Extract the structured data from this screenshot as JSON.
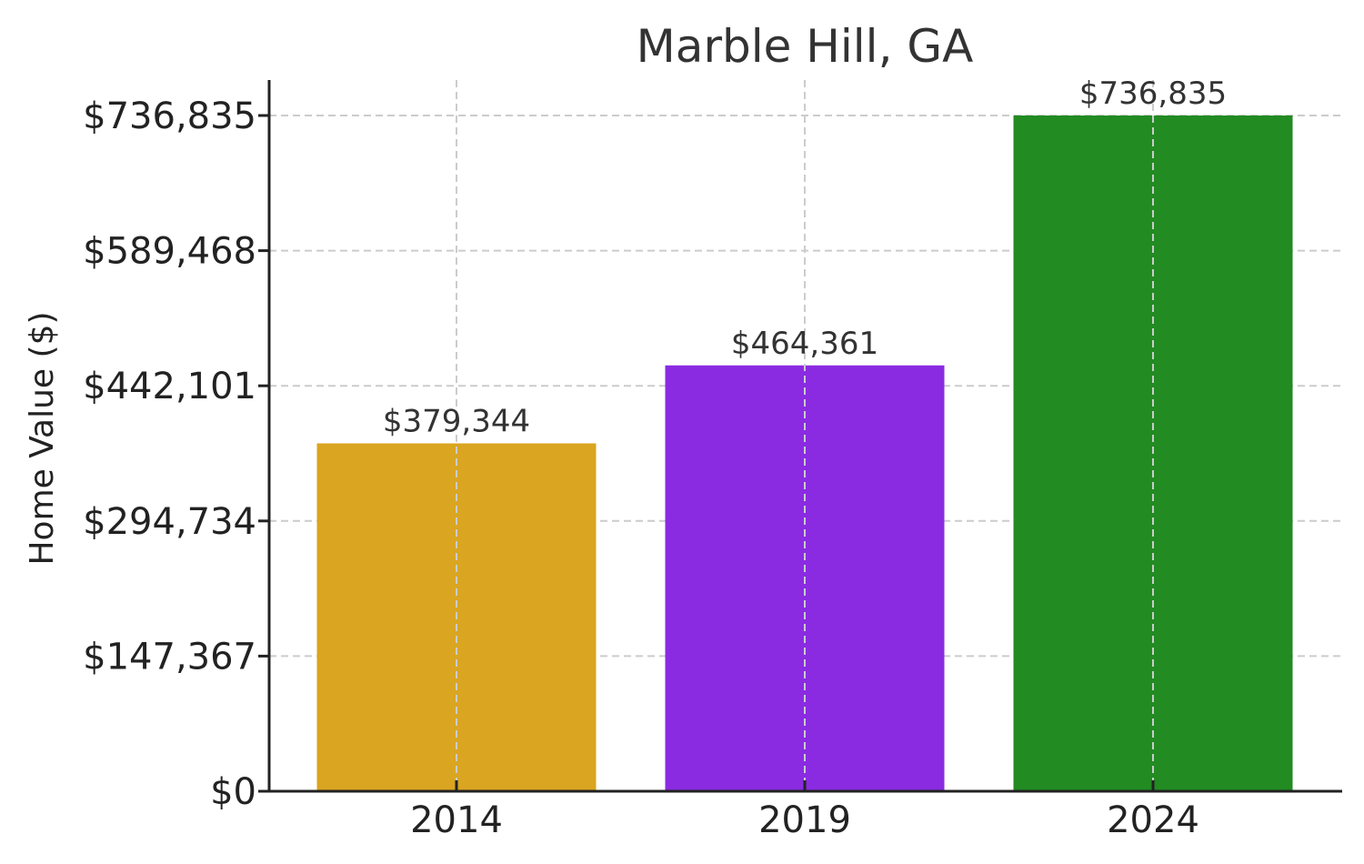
{
  "chart_data": {
    "type": "bar",
    "title": "Marble Hill, GA",
    "xlabel": "",
    "ylabel": "Home Value ($)",
    "categories": [
      "2014",
      "2019",
      "2024"
    ],
    "values": [
      379344,
      464361,
      736835
    ],
    "value_labels": [
      "$379,344",
      "$464,361",
      "$736,835"
    ],
    "colors": [
      "#DAA520",
      "#8A2BE2",
      "#228B22"
    ],
    "ylim": [
      0,
      736835
    ],
    "y_ticks": [
      0,
      147367,
      294734,
      442101,
      589468,
      736835
    ],
    "y_tick_labels": [
      "$0",
      "$147,367",
      "$294,734",
      "$442,101",
      "$589,468",
      "$736,835"
    ],
    "grid": true
  }
}
